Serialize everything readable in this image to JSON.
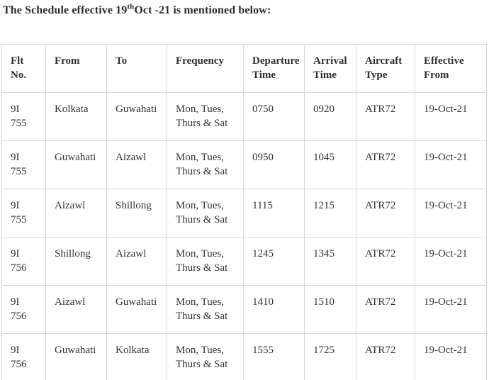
{
  "title": {
    "prefix": "The Schedule effective 19",
    "superscript": "th",
    "suffix": "Oct -21 is mentioned below:"
  },
  "colors": {
    "border": "#d6d6d6",
    "text": "#333333"
  },
  "table": {
    "headers": [
      "Flt No.",
      "From",
      "To",
      "Frequency",
      "Departure Time",
      "Arrival Time",
      "Aircraft Type",
      "Effective From"
    ],
    "rows": [
      {
        "flt_no": "9I 755",
        "from": "Kolkata",
        "to": "Guwahati",
        "frequency": "Mon, Tues, Thurs & Sat",
        "departure_time": "0750",
        "arrival_time": "0920",
        "aircraft_type": "ATR72",
        "effective_from": "19-Oct-21"
      },
      {
        "flt_no": "9I 755",
        "from": "Guwahati",
        "to": "Aizawl",
        "frequency": "Mon, Tues, Thurs & Sat",
        "departure_time": "0950",
        "arrival_time": "1045",
        "aircraft_type": "ATR72",
        "effective_from": "19-Oct-21"
      },
      {
        "flt_no": "9I 755",
        "from": "Aizawl",
        "to": "Shillong",
        "frequency": "Mon, Tues, Thurs & Sat",
        "departure_time": "1115",
        "arrival_time": "1215",
        "aircraft_type": "ATR72",
        "effective_from": "19-Oct-21"
      },
      {
        "flt_no": "9I 756",
        "from": "Shillong",
        "to": "Aizawl",
        "frequency": "Mon, Tues, Thurs & Sat",
        "departure_time": "1245",
        "arrival_time": "1345",
        "aircraft_type": "ATR72",
        "effective_from": "19-Oct-21"
      },
      {
        "flt_no": "9I 756",
        "from": "Aizawl",
        "to": "Guwahati",
        "frequency": "Mon, Tues, Thurs & Sat",
        "departure_time": "1410",
        "arrival_time": "1510",
        "aircraft_type": "ATR72",
        "effective_from": "19-Oct-21"
      },
      {
        "flt_no": "9I 756",
        "from": "Guwahati",
        "to": "Kolkata",
        "frequency": "Mon, Tues, Thurs & Sat",
        "departure_time": "1555",
        "arrival_time": "1725",
        "aircraft_type": "ATR72",
        "effective_from": "19-Oct-21"
      }
    ]
  }
}
